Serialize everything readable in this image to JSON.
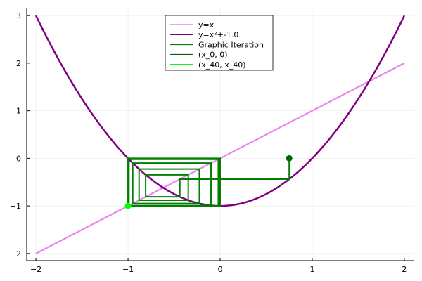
{
  "chart_data": {
    "type": "line",
    "title": "",
    "xlabel": "",
    "ylabel": "",
    "xlim": [
      -2.1,
      2.1
    ],
    "ylim": [
      -2.15,
      3.15
    ],
    "xticks": [
      -2,
      -1,
      0,
      1,
      2
    ],
    "yticks": [
      -2,
      -1,
      0,
      1,
      2,
      3
    ],
    "xtick_labels": [
      "−2",
      "−1",
      "0",
      "1",
      "2"
    ],
    "ytick_labels": [
      "−2",
      "−1",
      "0",
      "1",
      "2",
      "3"
    ],
    "grid": true,
    "legend_position": "top-center",
    "function": {
      "formula": "x^2 + c",
      "c": -1.0,
      "x_range": [
        -2,
        2
      ]
    },
    "iteration": {
      "x0": 0.75,
      "steps": 40
    },
    "series": [
      {
        "name": "y=x",
        "color": "#ee82ee",
        "kind": "identity-line",
        "x": [
          -2,
          2
        ],
        "y": [
          -2,
          2
        ]
      },
      {
        "name": "y=x²+-1.0",
        "color": "#800080",
        "kind": "parabola"
      },
      {
        "name": "Graphic Iteration",
        "color": "#008000",
        "kind": "cobweb"
      },
      {
        "name": "(x_0, 0)",
        "color": "#006400",
        "kind": "start-point",
        "x": 0.75,
        "y": 0
      },
      {
        "name": "(x_40, x_40)",
        "color": "#00ff00",
        "kind": "end-point",
        "x": -1.0,
        "y": -1.0
      }
    ]
  }
}
